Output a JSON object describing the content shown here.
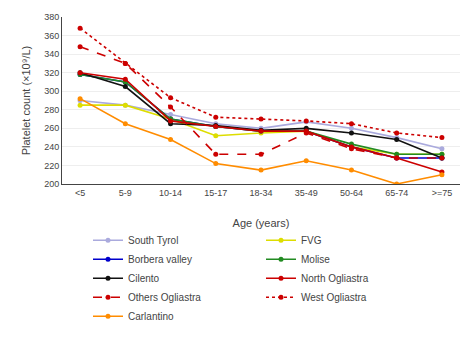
{
  "chart_data": {
    "type": "line",
    "xlabel": "Age (years)",
    "ylabel": "Platelet count (×10⁹/L)",
    "categories": [
      "<5",
      "5-9",
      "10-14",
      "15-17",
      "18-34",
      "35-49",
      "50-64",
      "65-74",
      ">=75"
    ],
    "series": [
      {
        "name": "South Tyrol",
        "color": "#AAAADD",
        "line_style": "solid",
        "marker": "circle",
        "values": [
          290,
          285,
          275,
          265,
          260,
          267,
          260,
          250,
          238
        ]
      },
      {
        "name": "FVG",
        "color": "#DDDD00",
        "line_style": "solid",
        "marker": "circle",
        "values": [
          285,
          285,
          270,
          252,
          255,
          257,
          240,
          232,
          232
        ]
      },
      {
        "name": "Borbera valley",
        "color": "#0000CC",
        "line_style": "solid",
        "marker": "circle",
        "values": [
          318,
          310,
          270,
          262,
          257,
          257,
          240,
          228,
          228
        ]
      },
      {
        "name": "Molise",
        "color": "#228B22",
        "line_style": "solid",
        "marker": "circle",
        "values": [
          318,
          310,
          270,
          262,
          257,
          257,
          243,
          232,
          232
        ]
      },
      {
        "name": "Cilento",
        "color": "#111111",
        "line_style": "solid",
        "marker": "circle",
        "values": [
          320,
          305,
          265,
          263,
          258,
          260,
          255,
          248,
          228
        ]
      },
      {
        "name": "North Ogliastra",
        "color": "#CC0000",
        "line_style": "solid",
        "marker": "circle",
        "values": [
          320,
          313,
          268,
          262,
          257,
          257,
          240,
          228,
          213
        ]
      },
      {
        "name": "Others Ogliastra",
        "color": "#CC0000",
        "line_style": "dashed",
        "marker": "circle",
        "values": [
          348,
          330,
          283,
          232,
          232,
          255,
          238,
          228,
          228
        ]
      },
      {
        "name": "West Ogliastra",
        "color": "#CC0000",
        "line_style": "dotted",
        "marker": "circle",
        "values": [
          368,
          330,
          293,
          272,
          270,
          268,
          265,
          255,
          250
        ]
      },
      {
        "name": "Carlantino",
        "color": "#FF8C00",
        "line_style": "solid",
        "marker": "circle",
        "values": [
          292,
          265,
          248,
          222,
          215,
          225,
          215,
          200,
          210
        ]
      }
    ],
    "ylim": [
      200,
      380
    ],
    "yticks": [
      200,
      220,
      240,
      260,
      280,
      300,
      320,
      340,
      360,
      380
    ],
    "grid": true,
    "legend": "bottom"
  }
}
